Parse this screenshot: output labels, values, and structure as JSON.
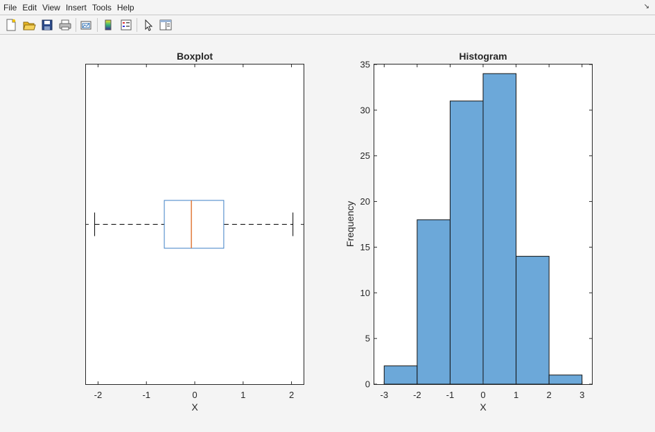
{
  "menubar": {
    "items": [
      "File",
      "Edit",
      "View",
      "Insert",
      "Tools",
      "Help"
    ],
    "corner_glyph": "↘"
  },
  "toolbar": {
    "icons": [
      "new-figure-icon",
      "open-file-icon",
      "save-icon",
      "print-icon",
      "link-plot-icon",
      "insert-colorbar-icon",
      "insert-legend-icon",
      "select-pointer-icon",
      "property-editor-icon"
    ]
  },
  "colors": {
    "box": "#3d7fc4",
    "median": "#e07a3a",
    "bar_fill": "#6ca8d9",
    "bar_edge": "#111111",
    "figure_bg": "#f4f4f4"
  },
  "chart_data": [
    {
      "type": "boxplot",
      "title": "Boxplot",
      "xlabel": "X",
      "ylabel": "",
      "xlim": [
        -2.25,
        2.25
      ],
      "xticks": [
        -2,
        -1,
        0,
        1,
        2
      ],
      "xtick_labels": [
        "-2",
        "-1",
        "0",
        "1",
        "2"
      ],
      "orientation": "horizontal",
      "whisker_low": -2.07,
      "q1": -0.63,
      "median": -0.07,
      "q3": 0.6,
      "whisker_high": 2.03,
      "grid": false
    },
    {
      "type": "bar",
      "title": "Histogram",
      "xlabel": "X",
      "ylabel": "Frequency",
      "xlim": [
        -3.3,
        3.3
      ],
      "ylim": [
        0,
        35
      ],
      "xticks": [
        -3,
        -2,
        -1,
        0,
        1,
        2,
        3
      ],
      "xtick_labels": [
        "-3",
        "-2",
        "-1",
        "0",
        "1",
        "2",
        "3"
      ],
      "yticks": [
        0,
        5,
        10,
        15,
        20,
        25,
        30,
        35
      ],
      "ytick_labels": [
        "0",
        "5",
        "10",
        "15",
        "20",
        "25",
        "30",
        "35"
      ],
      "bin_edges": [
        -3,
        -2,
        -1,
        0,
        1,
        2,
        3
      ],
      "values": [
        2,
        18,
        31,
        34,
        14,
        1
      ],
      "grid": false
    }
  ]
}
